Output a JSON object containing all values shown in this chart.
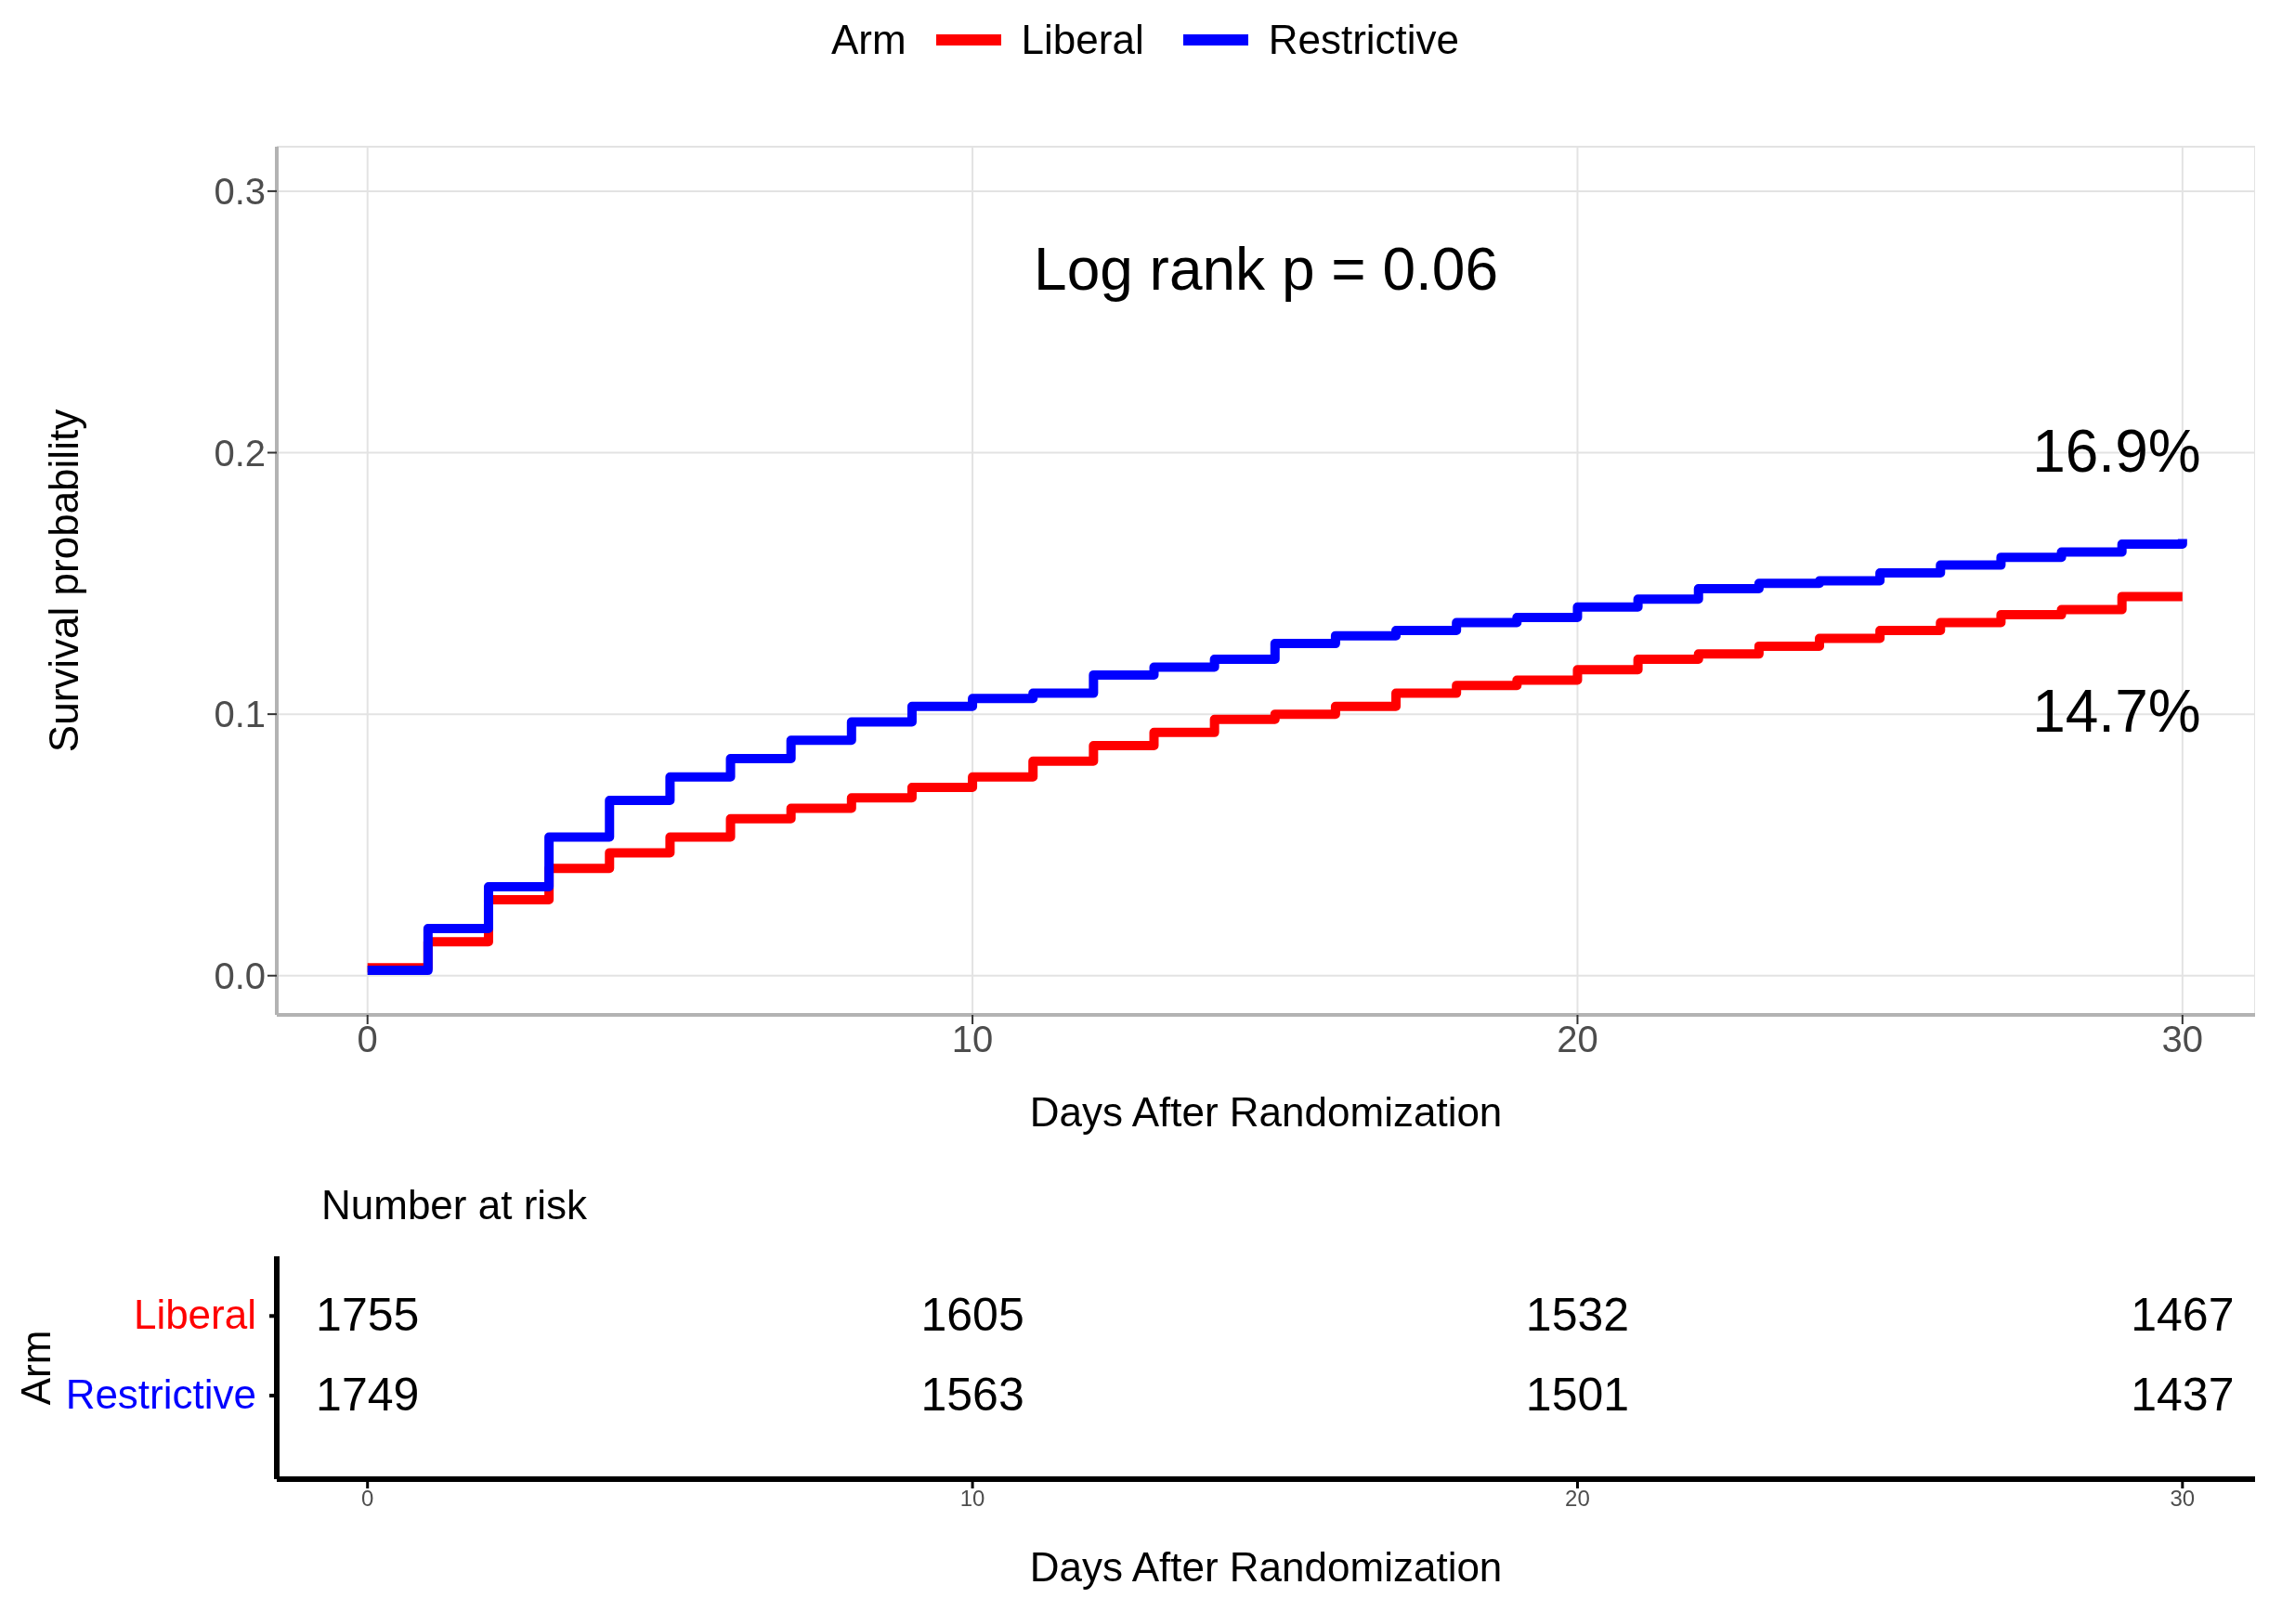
{
  "chart_data": [
    {
      "type": "step",
      "xlabel": "Days After Randomization",
      "ylabel": "Survival probability",
      "legend_title": "Arm",
      "legend": "top",
      "grid": true,
      "x": [
        0,
        1,
        2,
        3,
        4,
        5,
        6,
        7,
        8,
        9,
        10,
        11,
        12,
        13,
        14,
        15,
        16,
        17,
        18,
        19,
        20,
        21,
        22,
        23,
        24,
        25,
        26,
        27,
        28,
        29,
        30
      ],
      "xlim": [
        -1.5,
        31.2
      ],
      "xticks": [
        0,
        10,
        20,
        30
      ],
      "ylim": [
        -0.015,
        0.317
      ],
      "yticks": [
        {
          "value": 0,
          "label": "0.0"
        },
        0.1,
        0.2,
        0.3
      ],
      "series": [
        {
          "name": "Liberal",
          "color": "#ff0000",
          "values": [
            0.003,
            0.013,
            0.029,
            0.041,
            0.047,
            0.053,
            0.06,
            0.064,
            0.068,
            0.072,
            0.076,
            0.082,
            0.088,
            0.093,
            0.098,
            0.1,
            0.103,
            0.108,
            0.111,
            0.113,
            0.117,
            0.121,
            0.123,
            0.126,
            0.129,
            0.132,
            0.135,
            0.138,
            0.14,
            0.145,
            0.145
          ]
        },
        {
          "name": "Restrictive",
          "color": "#0000ff",
          "values": [
            0.002,
            0.018,
            0.034,
            0.053,
            0.067,
            0.076,
            0.083,
            0.09,
            0.097,
            0.103,
            0.106,
            0.108,
            0.115,
            0.118,
            0.121,
            0.127,
            0.13,
            0.132,
            0.135,
            0.137,
            0.141,
            0.144,
            0.148,
            0.15,
            0.151,
            0.154,
            0.157,
            0.16,
            0.162,
            0.165,
            0.167
          ]
        }
      ],
      "annotations": [
        "Log rank p = 0.06",
        "16.9%",
        "14.7%"
      ]
    },
    {
      "type": "heatmap",
      "title": "Number at risk",
      "ylabel": "Arm",
      "xlabel": "Days After Randomization",
      "data_labels": true,
      "categories": [
        "0",
        "10",
        "20",
        "30"
      ],
      "y_categories": [
        "Liberal",
        "Restrictive"
      ],
      "cells": [
        [
          1755,
          1605,
          1532,
          1467
        ],
        [
          1749,
          1563,
          1501,
          1437
        ]
      ]
    }
  ]
}
